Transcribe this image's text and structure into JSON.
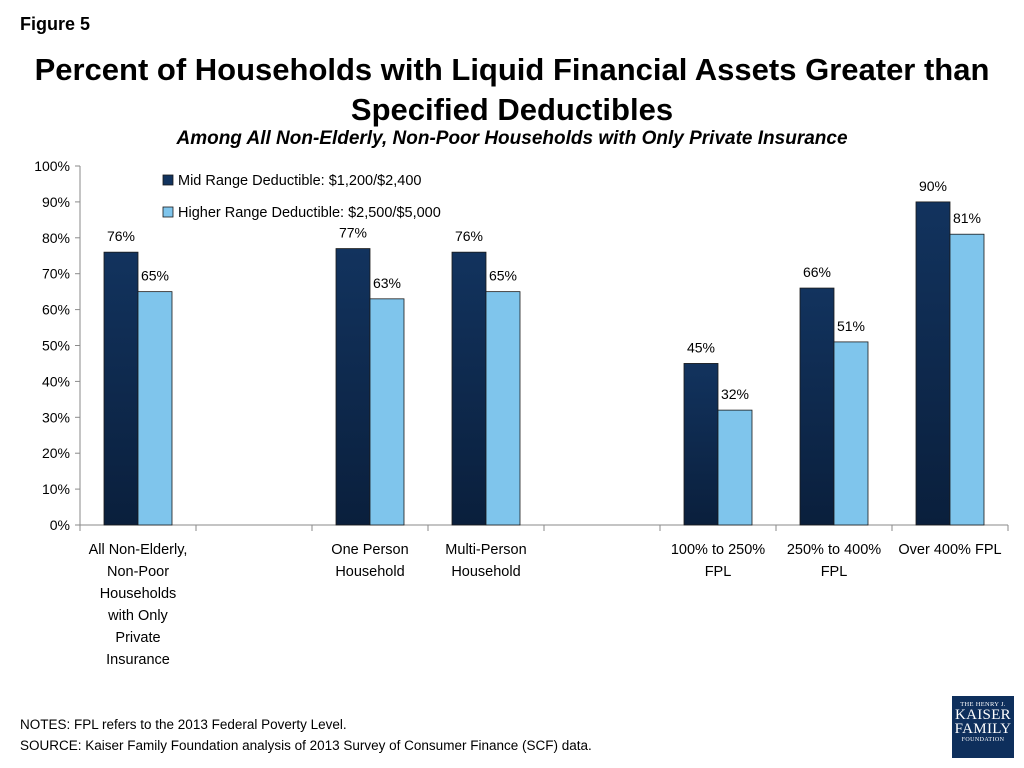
{
  "figure_label": "Figure 5",
  "notes": "NOTES: FPL refers to the 2013 Federal Poverty Level.",
  "source": "SOURCE: Kaiser Family Foundation analysis of 2013 Survey of Consumer Finance (SCF) data.",
  "logo": {
    "line1": "THE HENRY J.",
    "line2": "KAISER",
    "line3": "FAMILY",
    "line4": "FOUNDATION"
  },
  "colors": {
    "mid": "#12335e",
    "mid_dark": "#0a1f3c",
    "high": "#7fc5ec",
    "axis": "#8a8a8a"
  },
  "chart_data": {
    "type": "bar",
    "title": "Percent of Households with Liquid Financial Assets Greater than Specified Deductibles",
    "subtitle": "Among All Non-Elderly, Non-Poor Households with Only Private Insurance",
    "categories": [
      [
        "All Non-Elderly,",
        "Non-Poor",
        "Households",
        "with Only",
        "Private",
        "Insurance"
      ],
      [],
      [
        "One Person",
        "Household"
      ],
      [
        "Multi-Person",
        "Household"
      ],
      [],
      [
        "100% to 250%",
        "FPL"
      ],
      [
        "250% to 400%",
        "FPL"
      ],
      [
        "Over 400% FPL"
      ]
    ],
    "series": [
      {
        "name": "Mid Range Deductible: $1,200/$2,400",
        "values": [
          76,
          null,
          77,
          76,
          null,
          45,
          66,
          90
        ],
        "labels": [
          "76%",
          null,
          "77%",
          "76%",
          null,
          "45%",
          "66%",
          "90%"
        ]
      },
      {
        "name": "Higher Range Deductible: $2,500/$5,000",
        "values": [
          65,
          null,
          63,
          65,
          null,
          32,
          51,
          81
        ],
        "labels": [
          "65%",
          null,
          "63%",
          "65%",
          null,
          "32%",
          "51%",
          "81%"
        ]
      }
    ],
    "ylim": [
      0,
      100
    ],
    "yticks": [
      "0%",
      "10%",
      "20%",
      "30%",
      "40%",
      "50%",
      "60%",
      "70%",
      "80%",
      "90%",
      "100%"
    ],
    "grid": false,
    "legend": "top-left"
  }
}
